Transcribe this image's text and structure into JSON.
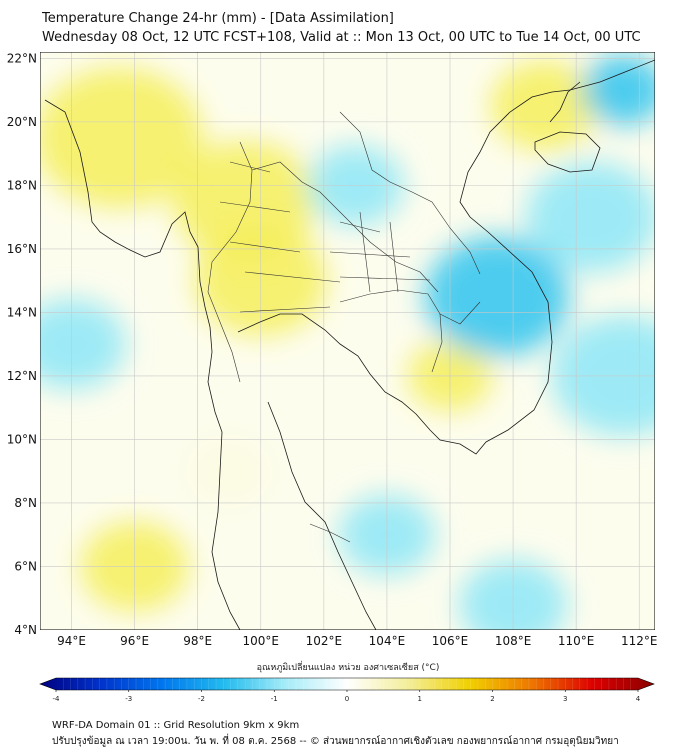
{
  "header": {
    "title": "Temperature Change 24-hr (mm) - [Data Assimilation]",
    "subtitle": "Wednesday 08 Oct, 12 UTC FCST+108, Valid at :: Mon 13 Oct, 00 UTC to Tue 14 Oct, 00 UTC"
  },
  "map": {
    "lon_range": [
      93,
      112.5
    ],
    "lat_range": [
      4,
      22.2
    ],
    "lon_ticks": [
      "94°E",
      "96°E",
      "98°E",
      "100°E",
      "102°E",
      "104°E",
      "106°E",
      "108°E",
      "110°E",
      "112°E"
    ],
    "lat_ticks": [
      "22°N",
      "20°N",
      "18°N",
      "16°N",
      "14°N",
      "12°N",
      "10°N",
      "8°N",
      "6°N",
      "4°N"
    ],
    "grid": true,
    "colors": {
      "warm": "#f5ee5a",
      "pale": "#fbfbe2",
      "cool": "#8ce6f7",
      "cold": "#2fc3ee",
      "coast": "#1a1a1a"
    }
  },
  "colorbar": {
    "title": "อุณหภูมิเปลี่ยนแปลง หน่วย องศาเซลเซียส (°C)",
    "min": -4,
    "max": 4,
    "tick_labels": [
      "-4",
      "-3",
      "-2",
      "-1",
      "0",
      "1",
      "2",
      "3",
      "4"
    ],
    "colors": [
      "#000080",
      "#0033cc",
      "#0077ee",
      "#22bbee",
      "#a6ecf8",
      "#ffffff",
      "#f3ee99",
      "#f0d000",
      "#ee7700",
      "#dd0000",
      "#8b0000"
    ]
  },
  "footer": {
    "line1": "WRF-DA Domain 01 :: Grid Resolution 9km x 9km",
    "line2": "ปรับปรุงข้อมูล ณ เวลา 19:00น. วัน พ. ที่ 08 ต.ค. 2568 -- © ส่วนพยากรณ์อากาศเชิงตัวเลข กองพยากรณ์อากาศ กรมอุตุนิยมวิทยา"
  }
}
